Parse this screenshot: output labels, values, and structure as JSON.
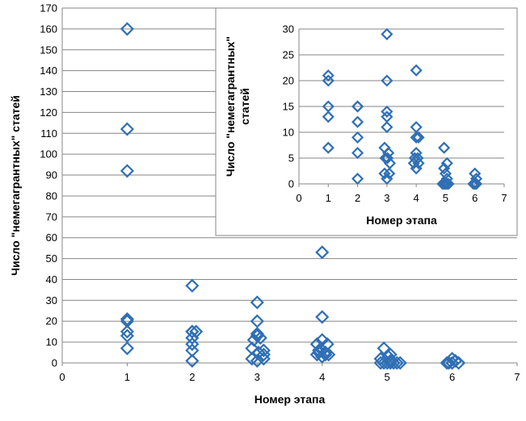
{
  "chart_data": [
    {
      "type": "scatter",
      "title": "",
      "xlabel": "Номер этапа",
      "ylabel": "Число \"немегагрантных\" статей",
      "xlim": [
        0,
        7
      ],
      "ylim": [
        0,
        170
      ],
      "x_ticks": [
        "0",
        "1",
        "2",
        "3",
        "4",
        "5",
        "6",
        "7"
      ],
      "y_ticks": [
        "0",
        "10",
        "20",
        "30",
        "40",
        "50",
        "60",
        "70",
        "80",
        "90",
        "100",
        "110",
        "120",
        "130",
        "140",
        "150",
        "160",
        "170"
      ],
      "grid": true,
      "marker": "diamond",
      "color": "#2F6FB5",
      "series": [
        {
          "points": [
            [
              1,
              160
            ],
            [
              1,
              112
            ],
            [
              1,
              92
            ],
            [
              1,
              21
            ],
            [
              1,
              20
            ],
            [
              1,
              15
            ],
            [
              1,
              13
            ],
            [
              1,
              7
            ],
            [
              2,
              37
            ],
            [
              2,
              15
            ],
            [
              2,
              15
            ],
            [
              2.06,
              15
            ],
            [
              2,
              12
            ],
            [
              2,
              9
            ],
            [
              2,
              6
            ],
            [
              2,
              1
            ],
            [
              3,
              29
            ],
            [
              3,
              20
            ],
            [
              3,
              14
            ],
            [
              3,
              13
            ],
            [
              2.95,
              11
            ],
            [
              3.05,
              12
            ],
            [
              2.92,
              7
            ],
            [
              3.1,
              6
            ],
            [
              3.1,
              4
            ],
            [
              3.02,
              5
            ],
            [
              2.92,
              2
            ],
            [
              3.1,
              2
            ],
            [
              3,
              1
            ],
            [
              4,
              53
            ],
            [
              4,
              22
            ],
            [
              4,
              11
            ],
            [
              3.92,
              9
            ],
            [
              4.08,
              9
            ],
            [
              3.95,
              6
            ],
            [
              4,
              6
            ],
            [
              4.05,
              5
            ],
            [
              3.92,
              4
            ],
            [
              4.1,
              4
            ],
            [
              4,
              3
            ],
            [
              4.05,
              4
            ],
            [
              3.95,
              5
            ],
            [
              4.95,
              7
            ],
            [
              5.05,
              4
            ],
            [
              5.02,
              3
            ],
            [
              4.9,
              2
            ],
            [
              5.05,
              1
            ],
            [
              4.9,
              0
            ],
            [
              4.95,
              0
            ],
            [
              5,
              0
            ],
            [
              5.05,
              0
            ],
            [
              5.1,
              0
            ],
            [
              5.15,
              0
            ],
            [
              5.2,
              0
            ],
            [
              6,
              2
            ],
            [
              6.05,
              1
            ],
            [
              5.95,
              0
            ],
            [
              6,
              0
            ],
            [
              6.1,
              0
            ],
            [
              5.92,
              0
            ]
          ]
        }
      ]
    },
    {
      "type": "scatter",
      "title": "",
      "xlabel": "Номер этапа",
      "ylabel": "Число \"немегагрантных\" статей",
      "xlim": [
        0,
        7
      ],
      "ylim": [
        0,
        30
      ],
      "x_ticks": [
        "0",
        "1",
        "2",
        "3",
        "4",
        "5",
        "6",
        "7"
      ],
      "y_ticks": [
        "0",
        "5",
        "10",
        "15",
        "20",
        "25",
        "30"
      ],
      "grid": true,
      "marker": "diamond",
      "color": "#2F6FB5",
      "series": [
        {
          "points": [
            [
              1,
              21
            ],
            [
              1,
              20
            ],
            [
              1,
              15
            ],
            [
              1,
              13
            ],
            [
              1,
              7
            ],
            [
              2,
              15
            ],
            [
              2,
              15
            ],
            [
              2,
              12
            ],
            [
              2,
              9
            ],
            [
              2,
              6
            ],
            [
              2,
              1
            ],
            [
              3,
              29
            ],
            [
              3,
              20
            ],
            [
              3,
              14
            ],
            [
              3,
              13
            ],
            [
              3,
              11
            ],
            [
              2.92,
              7
            ],
            [
              3.05,
              6
            ],
            [
              2.95,
              5
            ],
            [
              3.1,
              4
            ],
            [
              3.02,
              5
            ],
            [
              2.92,
              2
            ],
            [
              3.08,
              2
            ],
            [
              3,
              1
            ],
            [
              4,
              22
            ],
            [
              4,
              11
            ],
            [
              4,
              9
            ],
            [
              4.08,
              9
            ],
            [
              4,
              6
            ],
            [
              3.95,
              5
            ],
            [
              4.05,
              5
            ],
            [
              4.08,
              4
            ],
            [
              3.92,
              4
            ],
            [
              4,
              3
            ],
            [
              4.95,
              7
            ],
            [
              5.05,
              4
            ],
            [
              4.95,
              3
            ],
            [
              5,
              2
            ],
            [
              5.05,
              1
            ],
            [
              4.9,
              0
            ],
            [
              4.95,
              0
            ],
            [
              5,
              0
            ],
            [
              5.05,
              0
            ],
            [
              5.1,
              0
            ],
            [
              6,
              2
            ],
            [
              6.05,
              1
            ],
            [
              5.95,
              0
            ],
            [
              6,
              0
            ],
            [
              6.05,
              0
            ]
          ]
        }
      ]
    }
  ]
}
